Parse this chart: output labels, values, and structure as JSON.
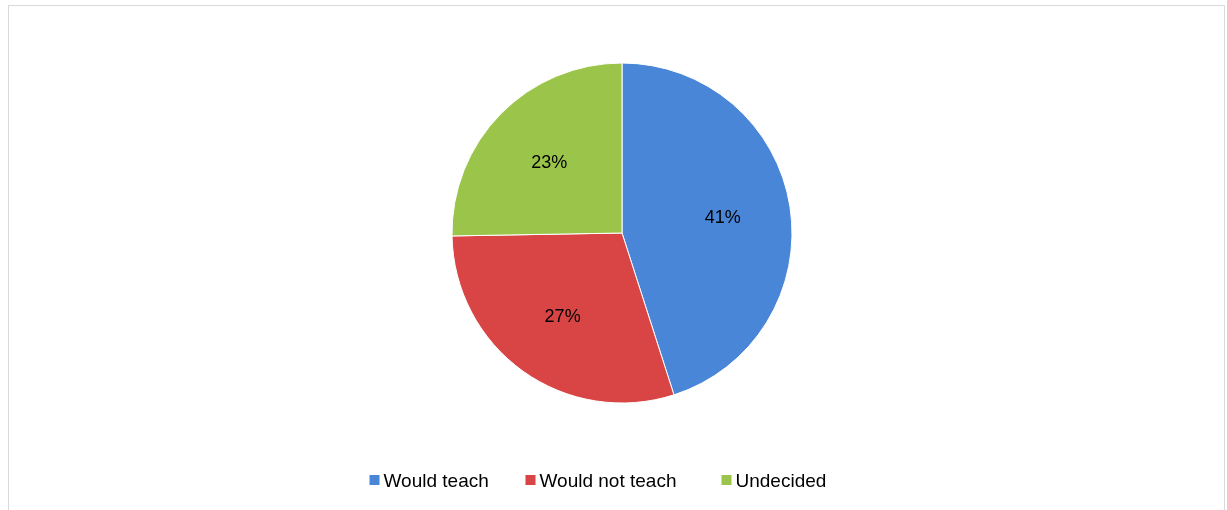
{
  "chart_data": {
    "type": "pie",
    "categories": [
      "Would teach",
      "Would not teach",
      "Undecided"
    ],
    "values": [
      41,
      27,
      23
    ],
    "colors": [
      "#4a86d8",
      "#d94545",
      "#9bc44a"
    ],
    "value_labels": [
      "41%",
      "27%",
      "23%"
    ],
    "legend": "bottom"
  }
}
